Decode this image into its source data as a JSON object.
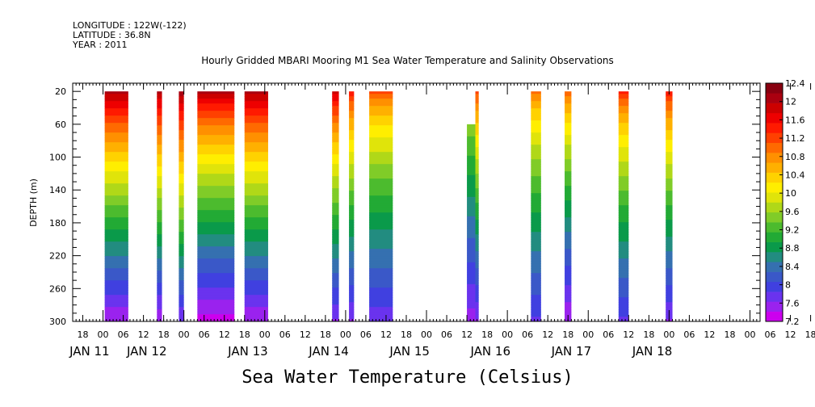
{
  "header": {
    "longitude": "LONGITUDE : 122W(-122)",
    "latitude": "LATITUDE : 36.8N",
    "year": "YEAR : 2011"
  },
  "chart_data": {
    "type": "heatmap",
    "title": "Hourly Gridded MBARI Mooring M1 Sea Water Temperature and Salinity Observations",
    "xlabel": "",
    "ylabel": "DEPTH (m)",
    "bottom_title": "Sea Water Temperature (Celsius)",
    "x_unit": "hours since JAN 11 00",
    "x_range": [
      -9,
      195
    ],
    "y_range": [
      10,
      300
    ],
    "y_ticks": [
      "20",
      "60",
      "100",
      "140",
      "180",
      "220",
      "260",
      "300"
    ],
    "y_tick_values": [
      20,
      60,
      100,
      140,
      180,
      220,
      260,
      300
    ],
    "x_hour_ticks": [
      "18",
      "00",
      "06",
      "12",
      "18",
      "00",
      "06",
      "12",
      "18",
      "00",
      "06",
      "12",
      "18",
      "00",
      "06",
      "12",
      "18",
      "00",
      "06",
      "12",
      "18",
      "00",
      "06",
      "12",
      "18",
      "00",
      "06",
      "12",
      "18",
      "00",
      "06",
      "12",
      "18",
      "00",
      "06",
      "12",
      "18"
    ],
    "x_date_labels": [
      {
        "label": "JAN 11",
        "hour": -4
      },
      {
        "label": "JAN 12",
        "hour": 13
      },
      {
        "label": "JAN 13",
        "hour": 43
      },
      {
        "label": "JAN 14",
        "hour": 67
      },
      {
        "label": "JAN 15",
        "hour": 91
      },
      {
        "label": "JAN 16",
        "hour": 115
      },
      {
        "label": "JAN 17",
        "hour": 139
      },
      {
        "label": "JAN 18",
        "hour": 163
      }
    ],
    "colorbar": {
      "levels": [
        7.2,
        7.6,
        8.0,
        8.4,
        8.8,
        9.2,
        9.6,
        10.0,
        10.4,
        10.8,
        11.2,
        11.6,
        12.0,
        12.4
      ],
      "labels": [
        "7.2",
        "7.6",
        "8",
        "8.4",
        "8.8",
        "9.2",
        "9.6",
        "10",
        "10.4",
        "10.8",
        "11.2",
        "11.6",
        "12",
        "12.4"
      ],
      "colors": [
        "#cc00ee",
        "#9a22ee",
        "#6a33ee",
        "#4040e0",
        "#3a58c8",
        "#3570b0",
        "#228c80",
        "#0a9a4a",
        "#22aa35",
        "#4cbb2e",
        "#80cc28",
        "#b0d818",
        "#e0e40a",
        "#ffee00",
        "#ffd200",
        "#ffb000",
        "#ff9000",
        "#ff6a00",
        "#ff4000",
        "#ff1a00",
        "#ee0000",
        "#cc0000",
        "#aa0010",
        "#880010"
      ]
    },
    "segments": [
      {
        "x0": 0.5,
        "x1": 7.5,
        "top": 20,
        "t_surface": 12.1,
        "t_bottom": 7.4,
        "shape": 1.3
      },
      {
        "x0": 16,
        "x1": 17.5,
        "top": 20,
        "t_surface": 12.0,
        "t_bottom": 7.4,
        "shape": 1.2
      },
      {
        "x0": 22.5,
        "x1": 24,
        "top": 20,
        "t_surface": 12.1,
        "t_bottom": 7.6,
        "shape": 1.2
      },
      {
        "x0": 28,
        "x1": 39,
        "top": 20,
        "t_surface": 12.1,
        "t_bottom": 7.3,
        "shape": 1.4
      },
      {
        "x0": 42,
        "x1": 49,
        "top": 20,
        "t_surface": 12.1,
        "t_bottom": 7.4,
        "shape": 1.3
      },
      {
        "x0": 68,
        "x1": 70,
        "top": 20,
        "t_surface": 11.9,
        "t_bottom": 7.6,
        "shape": 1.4
      },
      {
        "x0": 73,
        "x1": 74.5,
        "top": 20,
        "t_surface": 11.5,
        "t_bottom": 7.6,
        "shape": 1.4
      },
      {
        "x0": 79,
        "x1": 86,
        "top": 20,
        "t_surface": 11.2,
        "t_bottom": 7.7,
        "shape": 1.5
      },
      {
        "x0": 108,
        "x1": 110.5,
        "top": 60,
        "t_surface": 10.0,
        "t_bottom": 7.5,
        "shape": 1.2
      },
      {
        "x0": 110.5,
        "x1": 111.5,
        "top": 20,
        "t_surface": 11.2,
        "t_bottom": 7.6,
        "shape": 1.3
      },
      {
        "x0": 127,
        "x1": 130,
        "top": 20,
        "t_surface": 11.0,
        "t_bottom": 7.8,
        "shape": 1.5
      },
      {
        "x0": 137,
        "x1": 139,
        "top": 20,
        "t_surface": 11.1,
        "t_bottom": 7.4,
        "shape": 1.4
      },
      {
        "x0": 153,
        "x1": 156,
        "top": 20,
        "t_surface": 11.4,
        "t_bottom": 7.8,
        "shape": 1.5
      },
      {
        "x0": 167,
        "x1": 169,
        "top": 20,
        "t_surface": 11.5,
        "t_bottom": 7.6,
        "shape": 1.4
      }
    ]
  }
}
